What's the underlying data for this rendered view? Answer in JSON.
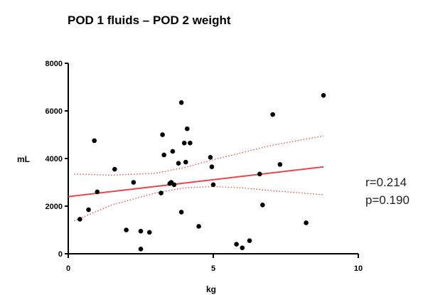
{
  "chart_data": {
    "type": "scatter",
    "title": "POD 1 fluids – POD 2 weight",
    "xlabel": "kg",
    "ylabel": "mL",
    "xlim": [
      0,
      10
    ],
    "ylim": [
      0,
      8000
    ],
    "xticks": [
      "0",
      "5",
      "10"
    ],
    "yticks": [
      "0",
      "2000",
      "4000",
      "6000",
      "8000"
    ],
    "points": [
      {
        "x": 0.4,
        "y": 1450
      },
      {
        "x": 0.7,
        "y": 1850
      },
      {
        "x": 0.9,
        "y": 4750
      },
      {
        "x": 1.0,
        "y": 2600
      },
      {
        "x": 1.6,
        "y": 3550
      },
      {
        "x": 2.0,
        "y": 1000
      },
      {
        "x": 2.25,
        "y": 3000
      },
      {
        "x": 2.5,
        "y": 950
      },
      {
        "x": 2.5,
        "y": 200
      },
      {
        "x": 2.8,
        "y": 900
      },
      {
        "x": 3.2,
        "y": 2550
      },
      {
        "x": 3.25,
        "y": 5000
      },
      {
        "x": 3.3,
        "y": 4150
      },
      {
        "x": 3.5,
        "y": 2950
      },
      {
        "x": 3.55,
        "y": 3000
      },
      {
        "x": 3.6,
        "y": 4300
      },
      {
        "x": 3.65,
        "y": 2900
      },
      {
        "x": 3.8,
        "y": 3800
      },
      {
        "x": 3.9,
        "y": 1750
      },
      {
        "x": 3.9,
        "y": 6350
      },
      {
        "x": 4.0,
        "y": 4650
      },
      {
        "x": 4.05,
        "y": 3850
      },
      {
        "x": 4.1,
        "y": 5250
      },
      {
        "x": 4.2,
        "y": 4650
      },
      {
        "x": 4.5,
        "y": 1150
      },
      {
        "x": 4.9,
        "y": 4050
      },
      {
        "x": 4.95,
        "y": 3650
      },
      {
        "x": 5.0,
        "y": 2900
      },
      {
        "x": 5.8,
        "y": 400
      },
      {
        "x": 6.0,
        "y": 250
      },
      {
        "x": 6.25,
        "y": 550
      },
      {
        "x": 6.6,
        "y": 3350
      },
      {
        "x": 6.7,
        "y": 2050
      },
      {
        "x": 7.05,
        "y": 5850
      },
      {
        "x": 7.3,
        "y": 3750
      },
      {
        "x": 8.2,
        "y": 1300
      },
      {
        "x": 8.8,
        "y": 6650
      }
    ],
    "regression": {
      "x": [
        0,
        8.8
      ],
      "y": [
        2400,
        3650
      ]
    },
    "ci_upper": {
      "x": [
        0.2,
        1.5,
        3,
        4,
        5,
        6,
        7,
        8.8
      ],
      "y": [
        3350,
        3300,
        3380,
        3620,
        3950,
        4250,
        4550,
        4950
      ]
    },
    "ci_lower": {
      "x": [
        0.2,
        1.5,
        3,
        4,
        5,
        6,
        7,
        8.8
      ],
      "y": [
        1380,
        2050,
        2550,
        2770,
        2820,
        2770,
        2650,
        2480
      ]
    },
    "colors": {
      "points": "#000000",
      "fit": "#e8474a",
      "band": "#e8474a",
      "axis": "#000000"
    },
    "grid": false,
    "annotations": [
      "r=0.214",
      "p=0.190"
    ]
  }
}
